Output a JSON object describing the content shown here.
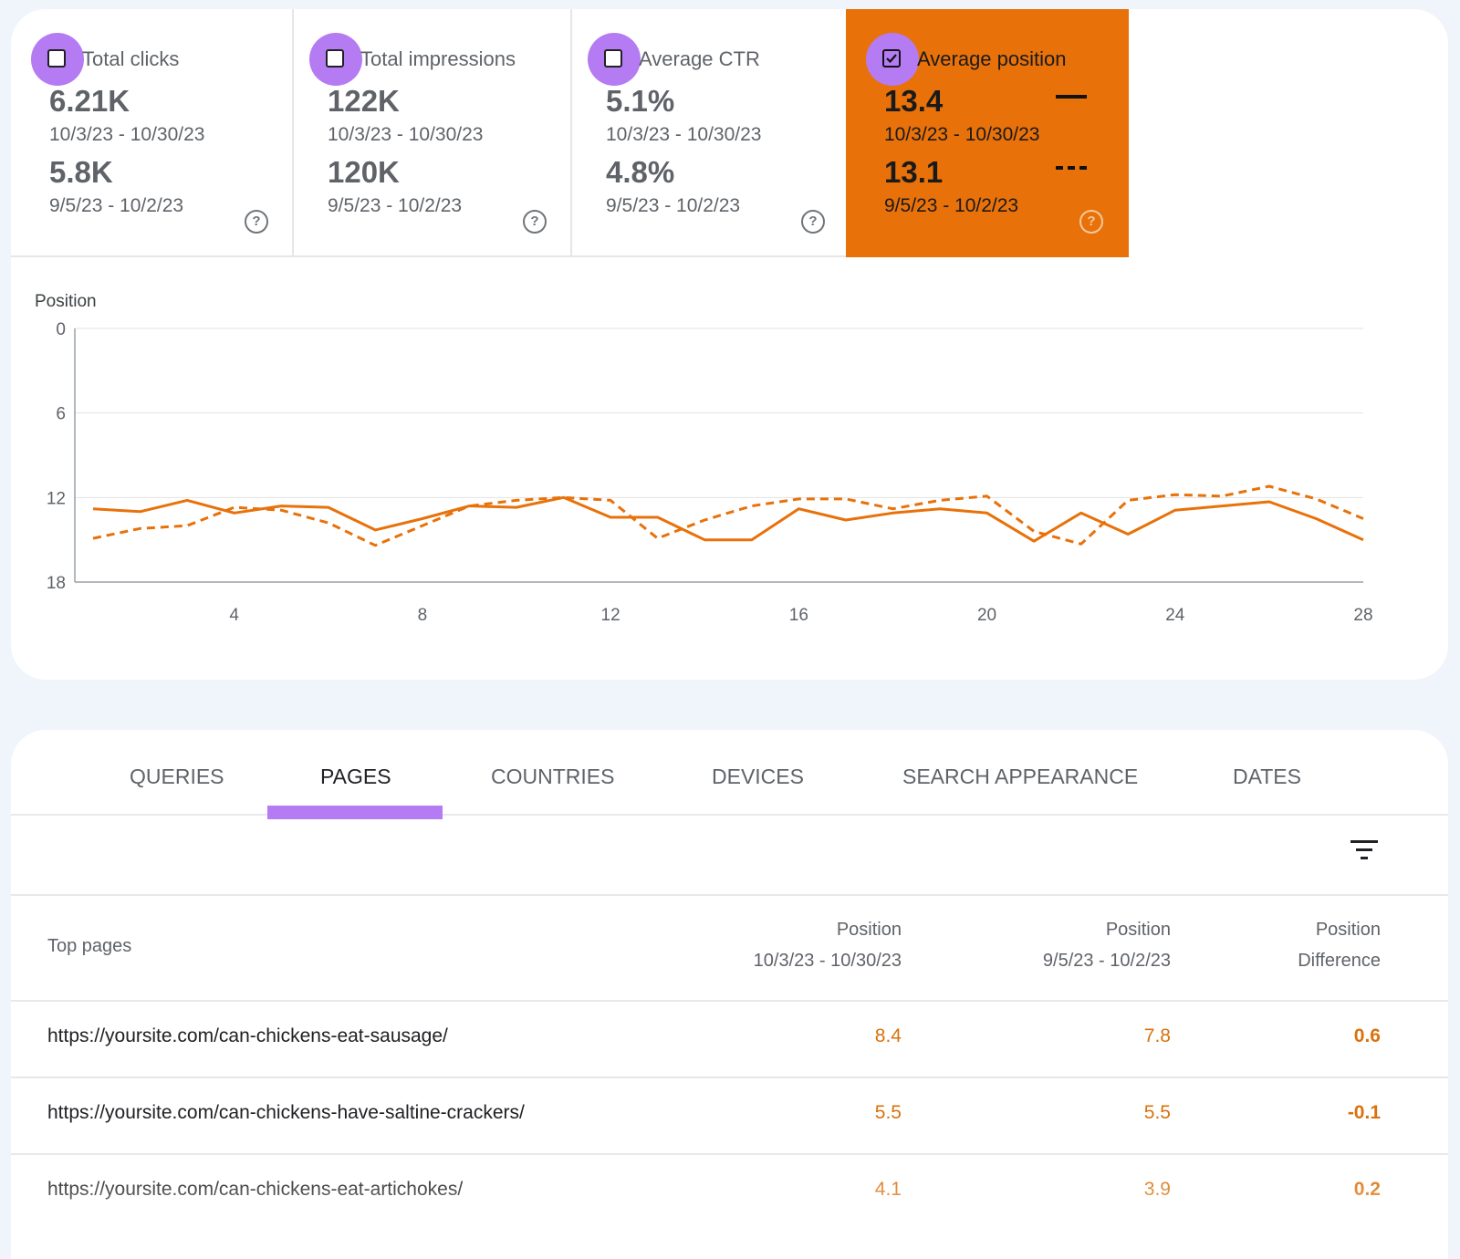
{
  "metrics": [
    {
      "label": "Total clicks",
      "current_value": "6.21K",
      "current_range": "10/3/23 - 10/30/23",
      "previous_value": "5.8K",
      "previous_range": "9/5/23 - 10/2/23",
      "checked": false
    },
    {
      "label": "Total impressions",
      "current_value": "122K",
      "current_range": "10/3/23 - 10/30/23",
      "previous_value": "120K",
      "previous_range": "9/5/23 - 10/2/23",
      "checked": false
    },
    {
      "label": "Average CTR",
      "current_value": "5.1%",
      "current_range": "10/3/23 - 10/30/23",
      "previous_value": "4.8%",
      "previous_range": "9/5/23 - 10/2/23",
      "checked": false
    },
    {
      "label": "Average position",
      "current_value": "13.4",
      "current_range": "10/3/23 - 10/30/23",
      "previous_value": "13.1",
      "previous_range": "9/5/23 - 10/2/23",
      "checked": true
    }
  ],
  "help_glyph": "?",
  "colors": {
    "accent": "#e8710a",
    "highlight": "#b57bf2",
    "series": "#e8710a"
  },
  "chart_data": {
    "type": "line",
    "ylabel": "Position",
    "y_reversed": true,
    "ylim": [
      0,
      18
    ],
    "yticks": [
      0,
      6,
      12,
      18
    ],
    "xlim": [
      1,
      28
    ],
    "xticks": [
      4,
      8,
      12,
      16,
      20,
      24,
      28
    ],
    "x": [
      1,
      2,
      3,
      4,
      5,
      6,
      7,
      8,
      9,
      10,
      11,
      12,
      13,
      14,
      15,
      16,
      17,
      18,
      19,
      20,
      21,
      22,
      23,
      24,
      25,
      26,
      27,
      28
    ],
    "series": [
      {
        "style": "solid",
        "values": [
          12.8,
          13.0,
          12.2,
          13.1,
          12.6,
          12.7,
          14.3,
          13.5,
          12.6,
          12.7,
          12.0,
          13.4,
          13.4,
          15.0,
          15.0,
          12.8,
          13.6,
          13.1,
          12.8,
          13.1,
          15.1,
          13.1,
          14.6,
          12.9,
          12.6,
          12.3,
          13.5,
          15.0
        ]
      },
      {
        "style": "dashed",
        "values": [
          14.9,
          14.2,
          14.0,
          12.7,
          12.9,
          13.8,
          15.4,
          14.0,
          12.6,
          12.2,
          12.0,
          12.2,
          14.9,
          13.6,
          12.6,
          12.1,
          12.1,
          12.8,
          12.2,
          11.9,
          14.4,
          15.3,
          12.2,
          11.8,
          11.9,
          11.2,
          12.1,
          13.5
        ]
      }
    ]
  },
  "tabs": [
    "QUERIES",
    "PAGES",
    "COUNTRIES",
    "DEVICES",
    "SEARCH APPEARANCE",
    "DATES"
  ],
  "active_tab": "PAGES",
  "table": {
    "col_page": "Top pages",
    "col_cur_title": "Position",
    "col_cur_range": "10/3/23 - 10/30/23",
    "col_prev_title": "Position",
    "col_prev_range": "9/5/23 - 10/2/23",
    "col_diff_title": "Position",
    "col_diff_sub": "Difference",
    "rows": [
      {
        "url": "https://yoursite.com/can-chickens-eat-sausage/",
        "current": "8.4",
        "previous": "7.8",
        "diff": "0.6"
      },
      {
        "url": "https://yoursite.com/can-chickens-have-saltine-crackers/",
        "current": "5.5",
        "previous": "5.5",
        "diff": "-0.1"
      },
      {
        "url": "https://yoursite.com/can-chickens-eat-artichokes/",
        "current": "4.1",
        "previous": "3.9",
        "diff": "0.2"
      }
    ]
  }
}
